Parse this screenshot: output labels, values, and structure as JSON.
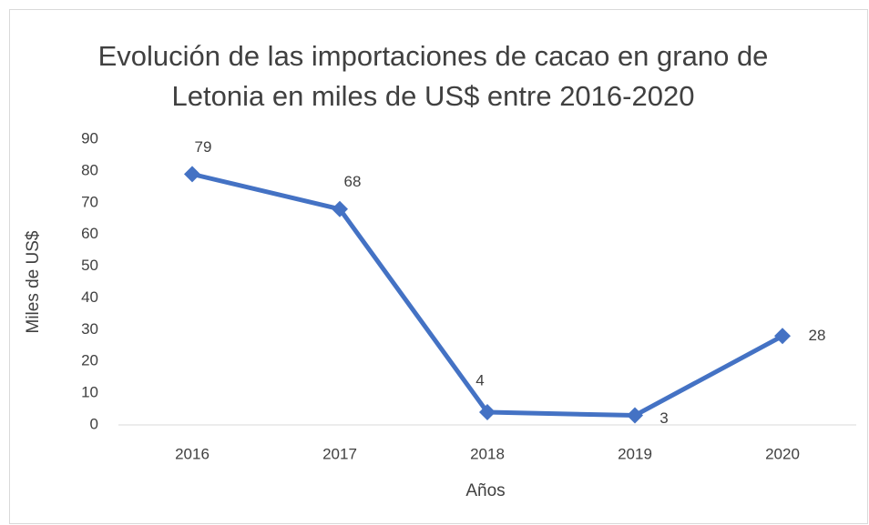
{
  "chart_data": {
    "type": "line",
    "title": "Evolución de las importaciones de cacao en grano de Letonia en miles de US$ entre 2016-2020",
    "categories": [
      "2016",
      "2017",
      "2018",
      "2019",
      "2020"
    ],
    "values": [
      79,
      68,
      4,
      3,
      28
    ],
    "color": "#4472c4",
    "xlabel": "Años",
    "ylabel": "Miles de US$",
    "ylim": [
      0,
      90
    ],
    "yticks": [
      0,
      10,
      20,
      30,
      40,
      50,
      60,
      70,
      80,
      90
    ],
    "grid": false
  }
}
